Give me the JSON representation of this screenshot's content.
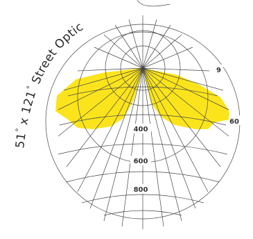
{
  "title": {
    "parts": [
      "51",
      "°",
      " x 121",
      "°",
      " Street Optic"
    ]
  },
  "scale_labels": [
    "400",
    "600",
    "800"
  ],
  "angle_labels": [
    "60",
    "9"
  ],
  "colors": {
    "beam": "#fbe41c",
    "grid": "#444444",
    "text": "#2a2a2a",
    "background": "#ffffff"
  }
}
